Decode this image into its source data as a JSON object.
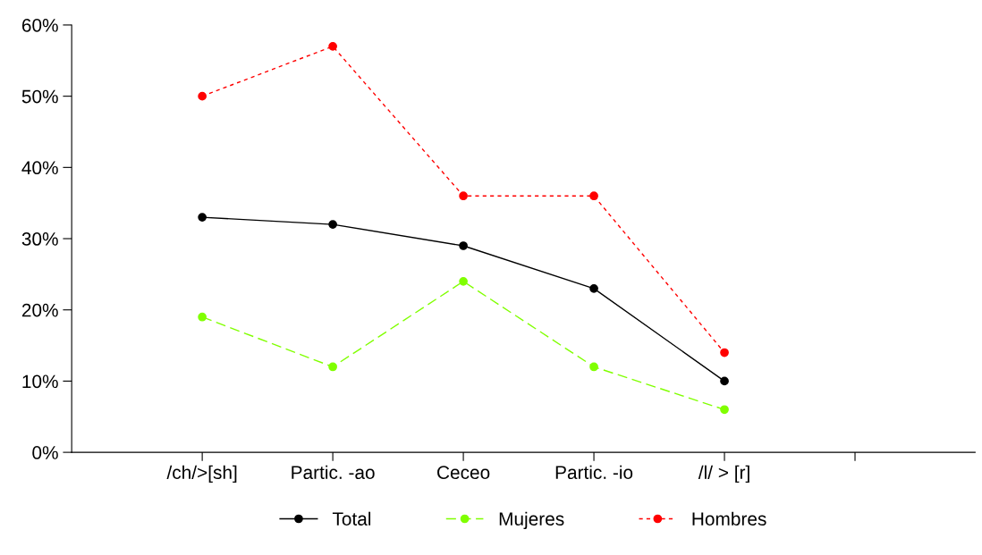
{
  "chart_data": {
    "type": "line",
    "categories": [
      "/ch/>[sh]",
      "Partic. -ao",
      "Ceceo",
      "Partic. -io",
      "/l/ > [r]",
      null
    ],
    "series": [
      {
        "name": "Total",
        "color": "#000000",
        "line_style": "solid",
        "values": [
          33,
          32,
          29,
          23,
          10,
          null
        ]
      },
      {
        "name": "Mujeres",
        "color": "#80ff00",
        "line_style": "dashed",
        "values": [
          19,
          12,
          24,
          12,
          6,
          null
        ]
      },
      {
        "name": "Hombres",
        "color": "#ff0000",
        "line_style": "dotted",
        "values": [
          50,
          57,
          36,
          36,
          14,
          null
        ]
      }
    ],
    "ylim": [
      0,
      60
    ],
    "yticks": [
      {
        "value": 0,
        "label": "0%"
      },
      {
        "value": 10,
        "label": "10%"
      },
      {
        "value": 20,
        "label": "20%"
      },
      {
        "value": 30,
        "label": "30%"
      },
      {
        "value": 40,
        "label": "40%"
      },
      {
        "value": 50,
        "label": "50%"
      },
      {
        "value": 60,
        "label": "60%"
      }
    ],
    "marker": "circle",
    "grid": false,
    "legend": "bottom"
  }
}
